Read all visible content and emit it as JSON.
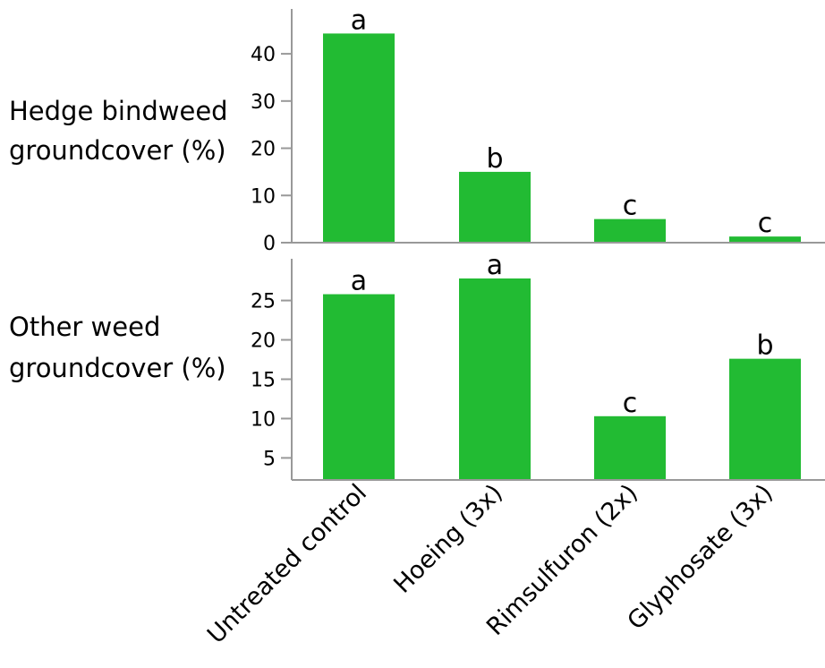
{
  "colors": {
    "bar": "#22bb33",
    "axis": "#999999"
  },
  "chart_data": [
    {
      "type": "bar",
      "ylabel_lines": [
        "Hedge bindweed",
        "groundcover (%)"
      ],
      "categories": [
        "Untreated control",
        "Hoeing (3x)",
        "Rimsulfuron (2x)",
        "Glyphosate (3x)"
      ],
      "values": [
        44.3,
        15.0,
        5.0,
        1.3
      ],
      "significance": [
        "a",
        "b",
        "c",
        "c"
      ],
      "ylim": [
        0,
        49.5
      ],
      "yticks": [
        0,
        10,
        20,
        30,
        40
      ],
      "ytick_labels": [
        "0",
        "10",
        "20",
        "30",
        "40"
      ]
    },
    {
      "type": "bar",
      "ylabel_lines": [
        "Other weed",
        "groundcover (%)"
      ],
      "categories": [
        "Untreated control",
        "Hoeing (3x)",
        "Rimsulfuron (2x)",
        "Glyphosate (3x)"
      ],
      "values": [
        25.8,
        27.8,
        10.3,
        17.6
      ],
      "significance": [
        "a",
        "a",
        "c",
        "b"
      ],
      "ylim": [
        2.2,
        30.3
      ],
      "yticks": [
        5,
        10,
        15,
        20,
        25
      ],
      "ytick_labels": [
        "5",
        "10",
        "15",
        "20",
        "25"
      ]
    }
  ]
}
